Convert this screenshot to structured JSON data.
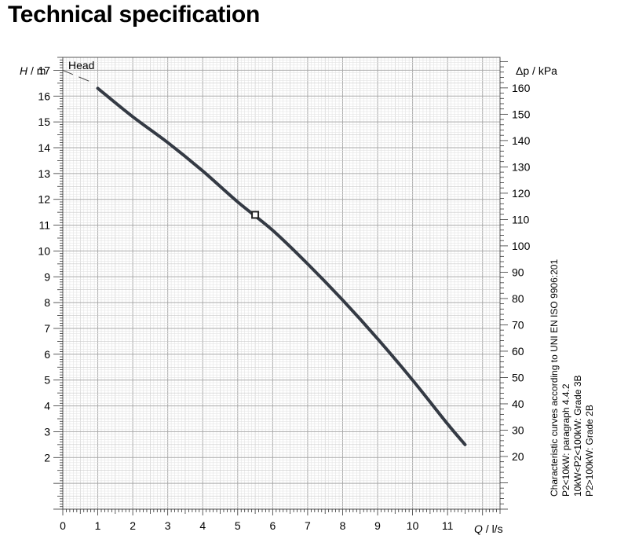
{
  "page": {
    "title": "Technical specification"
  },
  "chart_data": {
    "type": "line",
    "title": "Head",
    "xlabel": "l/s",
    "xsymbol": "Q",
    "ylabel": "m",
    "ysymbol": "H",
    "y2label": "kPa",
    "y2symbol": "Δp",
    "xlim": [
      0,
      12.5
    ],
    "ylim": [
      0,
      17.5
    ],
    "y2lim": [
      0,
      171.6
    ],
    "grid": true,
    "x_ticks": [
      0,
      1,
      2,
      3,
      4,
      5,
      6,
      7,
      8,
      9,
      10,
      11
    ],
    "y_ticks": [
      2,
      3,
      4,
      5,
      6,
      7,
      8,
      9,
      10,
      11,
      12,
      13,
      14,
      15,
      16,
      17
    ],
    "y2_ticks": [
      20,
      30,
      40,
      50,
      60,
      70,
      80,
      90,
      100,
      110,
      120,
      130,
      140,
      150,
      160
    ],
    "series": [
      {
        "name": "Head",
        "color": "#343a44",
        "x": [
          1.0,
          2.0,
          3.0,
          4.0,
          5.0,
          6.0,
          7.0,
          8.0,
          9.0,
          10.0,
          11.0,
          11.5
        ],
        "y": [
          16.3,
          15.2,
          14.2,
          13.1,
          11.9,
          10.8,
          9.5,
          8.1,
          6.6,
          5.0,
          3.3,
          2.5
        ]
      }
    ],
    "extrapolation": {
      "x": [
        0.0,
        0.8
      ],
      "y": [
        17.0,
        16.55
      ]
    },
    "operating_point": {
      "x": 5.5,
      "y": 11.4
    },
    "annotations": [
      "Characteristic curves according to UNI EN ISO 9906:201",
      "P2<10kW:  paragraph 4.4.2",
      "10kW<P2<100kW: Grade 3B",
      "P2>100kW: Grade 2B"
    ]
  }
}
